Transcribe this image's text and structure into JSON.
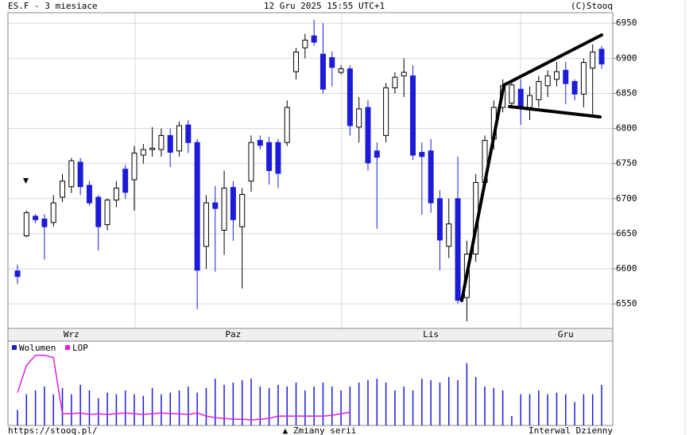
{
  "header": {
    "left": "ES.F - 3 miesiace",
    "center": "12 Gru 2025 15:55 UTC+1",
    "right": "(C)Stooq"
  },
  "footer": {
    "left": "https://stooq.pl/",
    "center": "▲ Zmiany serii",
    "right": "Interwal Dzienny"
  },
  "chart_data": [
    {
      "type": "candlestick",
      "categories": [
        null,
        null,
        null,
        null,
        null,
        null,
        "Wrz",
        null,
        null,
        null,
        null,
        null,
        null,
        null,
        null,
        null,
        null,
        null,
        null,
        null,
        null,
        null,
        null,
        null,
        "Paz",
        null,
        null,
        null,
        null,
        null,
        null,
        null,
        null,
        null,
        null,
        null,
        null,
        null,
        null,
        null,
        null,
        null,
        null,
        null,
        null,
        null,
        "Lis",
        null,
        null,
        null,
        null,
        null,
        null,
        null,
        null,
        null,
        null,
        null,
        null,
        null,
        null,
        "Gru",
        null,
        null,
        null,
        null
      ],
      "open": [
        6597,
        6647,
        6675,
        6671,
        6666,
        6702,
        6717,
        6752,
        6719,
        6702,
        6663,
        6698,
        6742,
        6727,
        6762,
        6770,
        6770,
        6790,
        6768,
        6805,
        6780,
        6632,
        6694,
        6655,
        6716,
        6660,
        6725,
        6783,
        6780,
        6780,
        6780,
        6881,
        6915,
        6932,
        6906,
        6901,
        6880,
        6885,
        6802,
        6830,
        6768,
        6790,
        6858,
        6875,
        6875,
        6766,
        6768,
        6700,
        6632,
        6700,
        6559,
        6621,
        6723,
        6785,
        6830,
        6836,
        6856,
        6830,
        6841,
        6861,
        6870,
        6883,
        6867,
        6849,
        6886,
        6913
      ],
      "high": [
        6606,
        6683,
        6678,
        6678,
        6705,
        6735,
        6758,
        6758,
        6725,
        6705,
        6700,
        6725,
        6748,
        6775,
        6778,
        6802,
        6800,
        6800,
        6810,
        6812,
        6785,
        6705,
        6718,
        6740,
        6725,
        6715,
        6790,
        6790,
        6788,
        6785,
        6840,
        6915,
        6935,
        6955,
        6950,
        6910,
        6890,
        6890,
        6845,
        6840,
        6780,
        6865,
        6880,
        6900,
        6890,
        6780,
        6785,
        6712,
        6700,
        6760,
        6640,
        6735,
        6790,
        6840,
        6870,
        6868,
        6870,
        6860,
        6875,
        6883,
        6895,
        6895,
        6870,
        6900,
        6920,
        6918
      ],
      "low": [
        6578,
        6645,
        6665,
        6613,
        6660,
        6695,
        6708,
        6705,
        6690,
        6626,
        6655,
        6688,
        6700,
        6683,
        6750,
        6760,
        6760,
        6745,
        6760,
        6765,
        6542,
        6600,
        6596,
        6620,
        6640,
        6572,
        6710,
        6770,
        6720,
        6715,
        6775,
        6870,
        6900,
        6918,
        6850,
        6860,
        6877,
        6790,
        6780,
        6740,
        6657,
        6780,
        6850,
        6845,
        6755,
        6677,
        6680,
        6598,
        6615,
        6550,
        6525,
        6610,
        6712,
        6770,
        6823,
        6830,
        6805,
        6812,
        6830,
        6845,
        6860,
        6835,
        6840,
        6830,
        6820,
        6885
      ],
      "close": [
        6589,
        6680,
        6670,
        6660,
        6694,
        6725,
        6754,
        6717,
        6694,
        6660,
        6698,
        6715,
        6709,
        6765,
        6770,
        6772,
        6790,
        6766,
        6804,
        6780,
        6598,
        6694,
        6686,
        6715,
        6670,
        6706,
        6780,
        6776,
        6740,
        6736,
        6830,
        6909,
        6926,
        6923,
        6856,
        6887,
        6885,
        6804,
        6828,
        6751,
        6759,
        6858,
        6873,
        6880,
        6762,
        6760,
        6694,
        6641,
        6664,
        6555,
        6621,
        6723,
        6783,
        6830,
        6861,
        6862,
        6830,
        6847,
        6867,
        6875,
        6881,
        6864,
        6849,
        6894,
        6909,
        6892
      ],
      "up_color": "#ffffff",
      "down_color": "#1c1cd8",
      "ylim": [
        6515,
        6965
      ],
      "yticks": [
        6550,
        6600,
        6650,
        6700,
        6750,
        6800,
        6850,
        6900,
        6950
      ],
      "grid": true
    },
    {
      "type": "bar",
      "series": [
        {
          "name": "Wolumen",
          "color": "#1c1cd8",
          "values": [
            20,
            40,
            45,
            50,
            40,
            48,
            40,
            52,
            45,
            35,
            42,
            40,
            45,
            40,
            38,
            48,
            40,
            42,
            45,
            50,
            42,
            48,
            60,
            52,
            55,
            58,
            60,
            50,
            48,
            52,
            50,
            55,
            45,
            50,
            55,
            50,
            45,
            50,
            55,
            58,
            60,
            55,
            45,
            50,
            45,
            60,
            58,
            55,
            62,
            58,
            80,
            62,
            50,
            48,
            45,
            12,
            40,
            40,
            45,
            40,
            42,
            40,
            30,
            40,
            40,
            52
          ]
        },
        {
          "name": "LOP",
          "color": "#e020e0",
          "type": "line",
          "values": [
            42,
            77,
            90,
            90,
            87,
            15,
            15,
            16,
            14,
            15,
            14,
            15,
            16,
            15,
            14,
            15,
            16,
            15,
            15,
            14,
            16,
            12,
            10,
            9,
            8,
            8,
            7,
            8,
            9,
            12,
            12,
            12,
            12,
            12,
            12,
            13,
            15,
            17,
            null,
            null,
            null,
            null,
            null,
            null,
            null,
            null,
            null,
            null,
            null,
            null,
            null,
            null,
            null,
            null,
            null,
            null,
            null,
            null,
            null,
            null,
            null,
            null,
            null,
            null,
            null,
            null
          ]
        }
      ],
      "ylim": [
        0,
        105
      ]
    }
  ]
}
